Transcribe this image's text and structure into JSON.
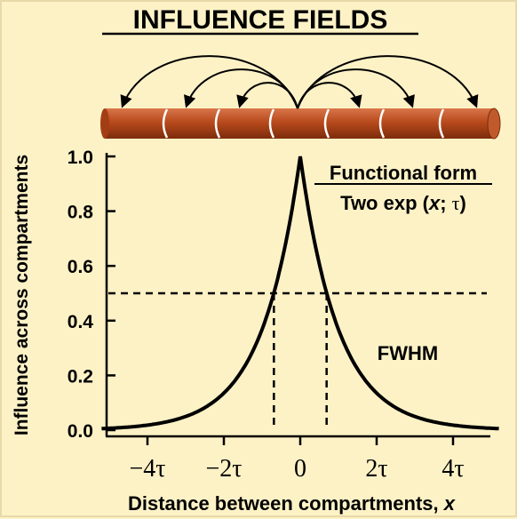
{
  "title": "INFLUENCE FIELDS",
  "colors": {
    "background": "#fdf2c6",
    "rod": "#b84a1c",
    "rod_dark": "#8a3210",
    "rod_light": "#d8764a",
    "curve": "#000000"
  },
  "annotation": {
    "heading": "Functional form",
    "formula_prefix": "Two exp (",
    "formula_var": "x",
    "formula_sep": "; ",
    "formula_tau": "τ",
    "formula_suffix": ")",
    "fwhm": "FWHM"
  },
  "chart_data": {
    "type": "line",
    "xlabel": "Distance between compartments, x",
    "ylabel": "Influence across compartments",
    "xlim": [
      -5.2,
      5.2
    ],
    "ylim": [
      0,
      1.0
    ],
    "x_ticks": [
      {
        "value": -4,
        "label": "−4τ"
      },
      {
        "value": -2,
        "label": "−2τ"
      },
      {
        "value": 0,
        "label": "0"
      },
      {
        "value": 2,
        "label": "2τ"
      },
      {
        "value": 4,
        "label": "4τ"
      }
    ],
    "y_ticks": [
      {
        "value": 0.0,
        "label": "0.0"
      },
      {
        "value": 0.2,
        "label": "0.2"
      },
      {
        "value": 0.4,
        "label": "0.4"
      },
      {
        "value": 0.6,
        "label": "0.6"
      },
      {
        "value": 0.8,
        "label": "0.8"
      },
      {
        "value": 1.0,
        "label": "1.0"
      }
    ],
    "function": "exp(-|x|/τ)",
    "half_max": 0.5,
    "half_width": 0.69
  }
}
